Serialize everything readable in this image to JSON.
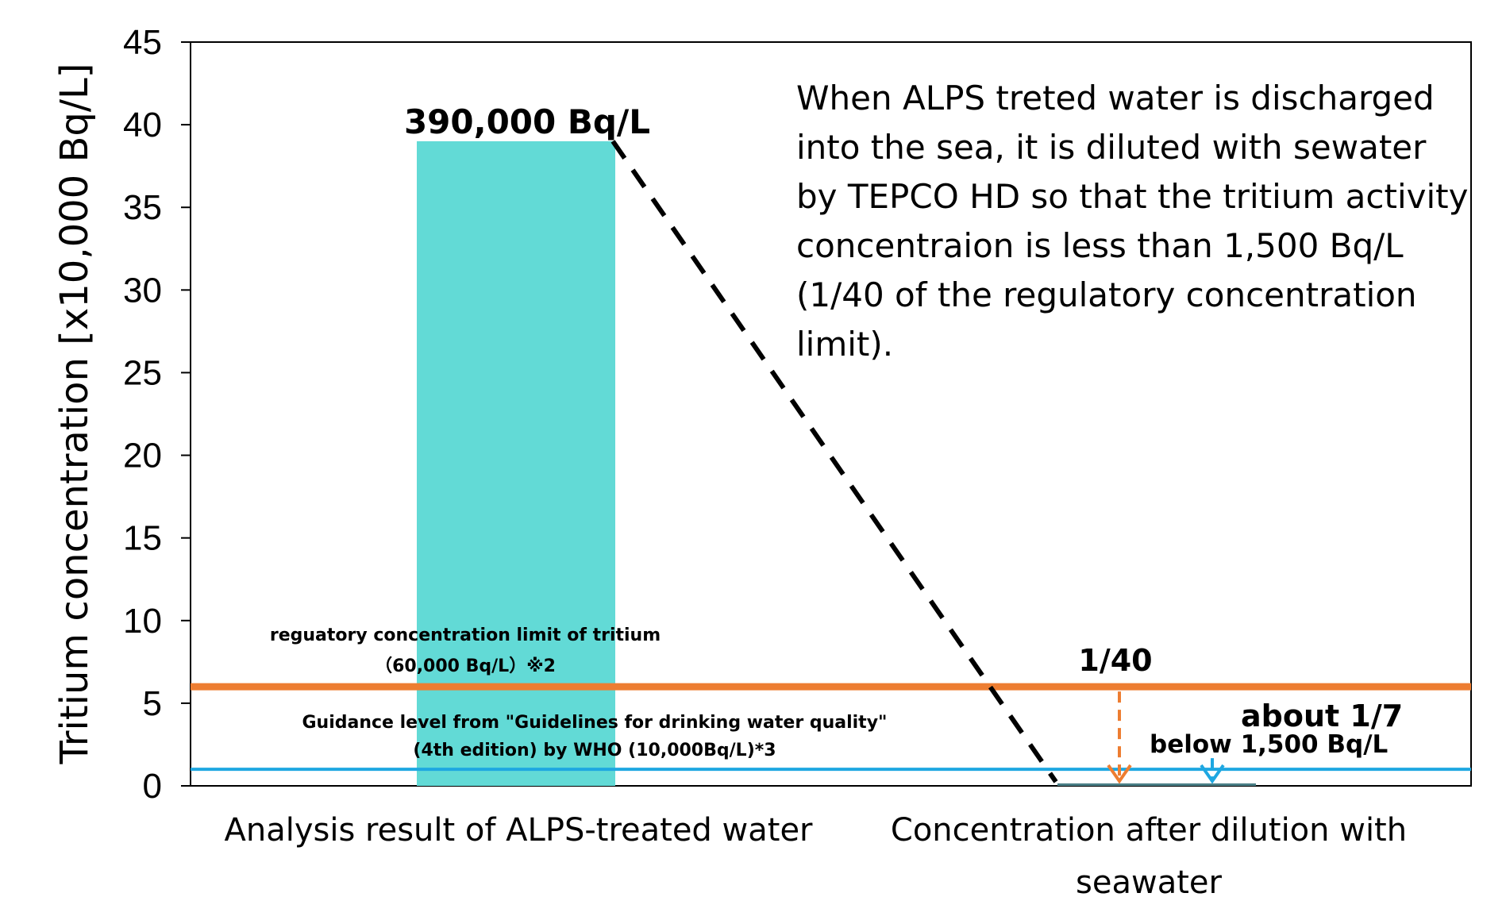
{
  "chart_data": {
    "type": "bar",
    "ylabel": "Tritium concentration [x10,000 Bq/L]",
    "ylim": [
      0,
      45
    ],
    "yticks": [
      0,
      5,
      10,
      15,
      20,
      25,
      30,
      35,
      40,
      45
    ],
    "categories": [
      "Analysis result of ALPS-treated water",
      "Concentration after dilution with seawater"
    ],
    "values": [
      39,
      0.15
    ],
    "bar_labels": [
      "390,000 Bq/L",
      "below 1,500 Bq/L"
    ],
    "bar_color": "#62dad6",
    "reference_lines": [
      {
        "value": 6,
        "color": "#ed7d31",
        "label_line1": "reguatory concentration limit of tritium",
        "label_line2": "（60,000 Bq/L）※2"
      },
      {
        "value": 1,
        "color": "#1ea7e1",
        "label_line1": "Guidance level from \"Guidelines for drinking water quality\"",
        "label_line2": "(4th edition) by WHO (10,000Bq/L)*3"
      }
    ],
    "ratio_labels": [
      "1/40",
      "about 1/7"
    ],
    "annotation_lines": [
      "When ALPS treted water is discharged",
      "into the sea, it is diluted with sewater",
      "by TEPCO HD so that the tritium activity",
      "concentraion is less than 1,500 Bq/L",
      "(1/40 of the regulatory concentration",
      "limit)."
    ],
    "grid": false,
    "legend": "none"
  }
}
